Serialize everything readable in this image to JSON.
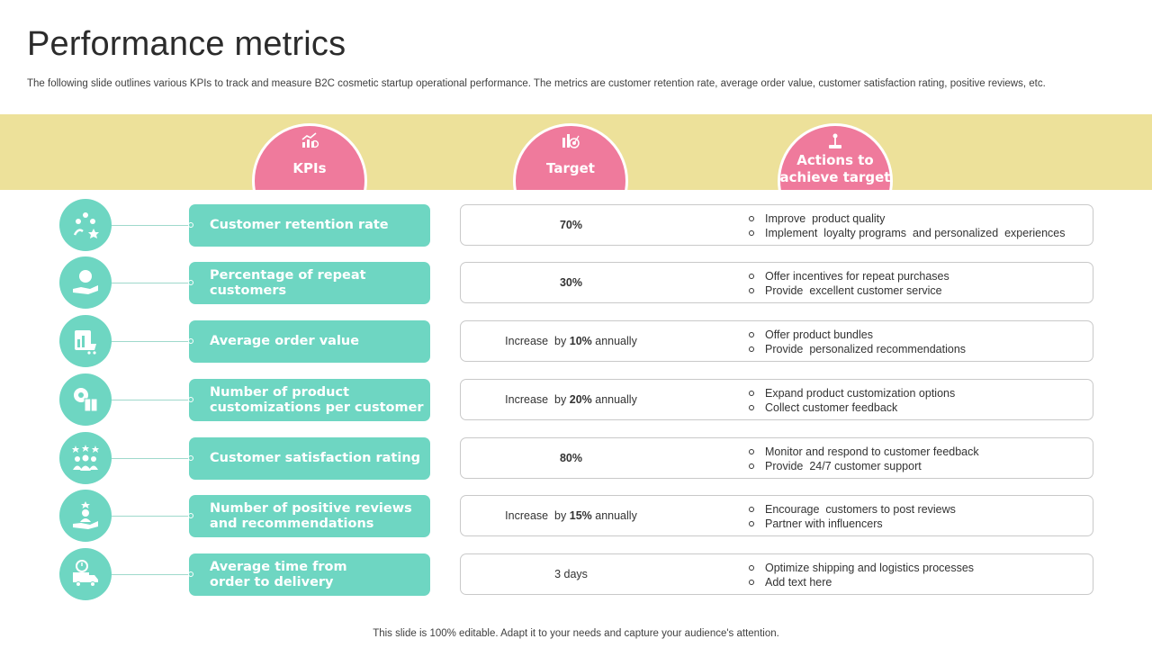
{
  "title": "Performance metrics",
  "subtitle": "The following slide outlines various KPIs to track and measure B2C cosmetic startup operational performance. The metrics are customer retention rate, average order value, customer satisfaction rating, positive reviews, etc.",
  "headers": {
    "kpis": "KPIs",
    "target": "Target",
    "actions_line1": "Actions to",
    "actions_line2": "achieve target"
  },
  "rows": [
    {
      "icon": "customer-retention-icon",
      "kpi_line1": "Customer retention rate",
      "kpi_line2": "",
      "target_pre": "",
      "target_value": "70%",
      "target_post": "",
      "actions": [
        "Improve  product quality",
        "Implement  loyalty programs  and personalized  experiences"
      ]
    },
    {
      "icon": "repeat-customer-icon",
      "kpi_line1": "Percentage of repeat",
      "kpi_line2": "customers",
      "target_pre": "",
      "target_value": "30%",
      "target_post": "",
      "actions": [
        "Offer incentives for repeat purchases",
        "Provide  excellent customer service"
      ]
    },
    {
      "icon": "order-value-icon",
      "kpi_line1": "Average order value",
      "kpi_line2": "",
      "target_pre": "Increase  by ",
      "target_value": "10%",
      "target_post": " annually",
      "actions": [
        "Offer product bundles",
        "Provide  personalized recommendations"
      ]
    },
    {
      "icon": "customization-icon",
      "kpi_line1": "Number of product",
      "kpi_line2": "customizations per customer",
      "target_pre": "Increase  by ",
      "target_value": "20%",
      "target_post": " annually",
      "actions": [
        "Expand product customization options",
        "Collect customer feedback"
      ]
    },
    {
      "icon": "satisfaction-rating-icon",
      "kpi_line1": "Customer satisfaction rating",
      "kpi_line2": "",
      "target_pre": "",
      "target_value": "80%",
      "target_post": "",
      "actions": [
        "Monitor and respond to customer feedback",
        "Provide  24/7 customer support"
      ]
    },
    {
      "icon": "positive-reviews-icon",
      "kpi_line1": "Number of positive reviews",
      "kpi_line2": "and recommendations",
      "target_pre": "Increase  by ",
      "target_value": "15%",
      "target_post": " annually",
      "actions": [
        "Encourage  customers to post reviews",
        "Partner with influencers"
      ]
    },
    {
      "icon": "delivery-time-icon",
      "kpi_line1": "Average time from",
      "kpi_line2": "order to delivery",
      "target_pre": "",
      "target_value": "3 days",
      "target_post": "",
      "actions": [
        "Optimize shipping and logistics processes",
        "Add text here"
      ]
    }
  ],
  "footer": "This slide is 100% editable. Adapt it to your needs and capture your audience's attention.",
  "colors": {
    "teal": "#6ed6c2",
    "pink": "#ef7a9c",
    "band": "#ede19a"
  }
}
